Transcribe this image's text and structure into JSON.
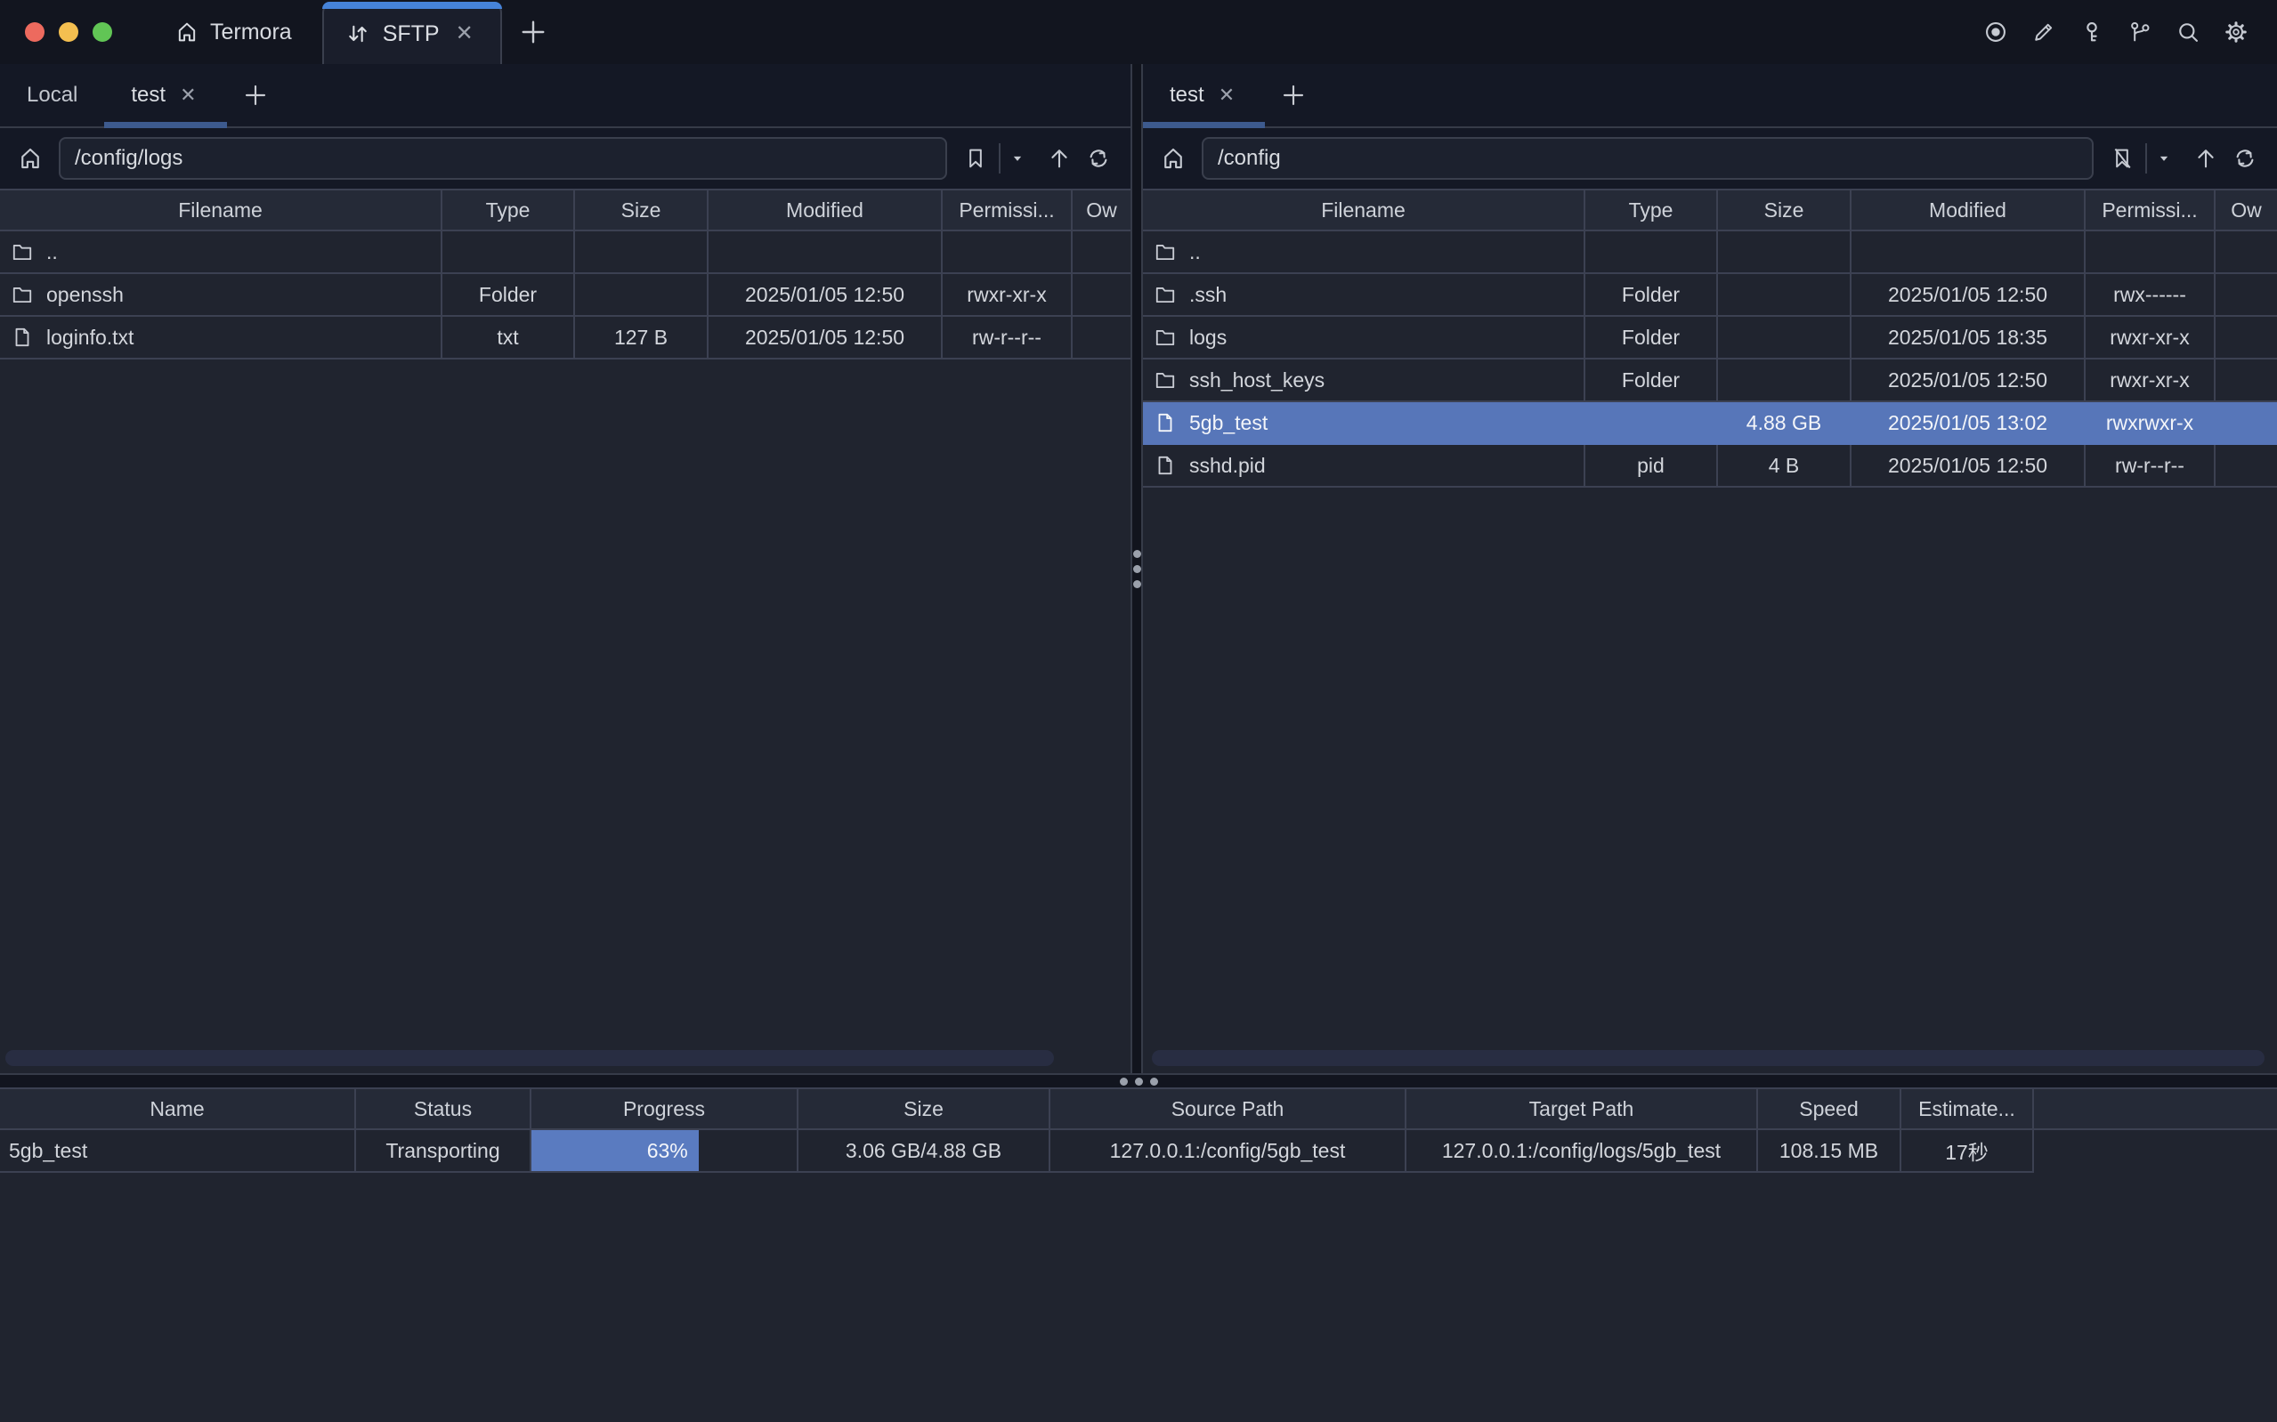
{
  "titlebar": {
    "app_label": "Termora",
    "sftp_tab": "SFTP",
    "close_glyph": "✕",
    "icons": [
      "record-icon",
      "pencil-icon",
      "key-icon",
      "branch-icon",
      "search-icon",
      "gear-icon"
    ]
  },
  "left_panel": {
    "tabs": [
      {
        "label": "Local",
        "active": false
      },
      {
        "label": "test",
        "active": true,
        "close_glyph": "✕"
      }
    ],
    "path": "/config/logs",
    "columns": [
      "Filename",
      "Type",
      "Size",
      "Modified",
      "Permissi...",
      "Ow"
    ],
    "rows": [
      {
        "name": "..",
        "icon": "folder",
        "type": "",
        "size": "",
        "modified": "",
        "perm": ""
      },
      {
        "name": "openssh",
        "icon": "folder",
        "type": "Folder",
        "size": "",
        "modified": "2025/01/05 12:50",
        "perm": "rwxr-xr-x"
      },
      {
        "name": "loginfo.txt",
        "icon": "file",
        "type": "txt",
        "size": "127 B",
        "modified": "2025/01/05 12:50",
        "perm": "rw-r--r--"
      }
    ]
  },
  "right_panel": {
    "tabs": [
      {
        "label": "test",
        "active": true,
        "close_glyph": "✕"
      }
    ],
    "path": "/config",
    "columns": [
      "Filename",
      "Type",
      "Size",
      "Modified",
      "Permissi...",
      "Ow"
    ],
    "rows": [
      {
        "name": "..",
        "icon": "folder",
        "type": "",
        "size": "",
        "modified": "",
        "perm": ""
      },
      {
        "name": ".ssh",
        "icon": "folder",
        "type": "Folder",
        "size": "",
        "modified": "2025/01/05 12:50",
        "perm": "rwx------"
      },
      {
        "name": "logs",
        "icon": "folder",
        "type": "Folder",
        "size": "",
        "modified": "2025/01/05 18:35",
        "perm": "rwxr-xr-x"
      },
      {
        "name": "ssh_host_keys",
        "icon": "folder",
        "type": "Folder",
        "size": "",
        "modified": "2025/01/05 12:50",
        "perm": "rwxr-xr-x"
      },
      {
        "name": "5gb_test",
        "icon": "file",
        "type": "",
        "size": "4.88 GB",
        "modified": "2025/01/05 13:02",
        "perm": "rwxrwxr-x",
        "selected": true
      },
      {
        "name": "sshd.pid",
        "icon": "file",
        "type": "pid",
        "size": "4 B",
        "modified": "2025/01/05 12:50",
        "perm": "rw-r--r--"
      }
    ]
  },
  "transfers": {
    "columns": [
      "Name",
      "Status",
      "Progress",
      "Size",
      "Source Path",
      "Target Path",
      "Speed",
      "Estimate..."
    ],
    "rows": [
      {
        "name": "5gb_test",
        "status": "Transporting",
        "progress_label": "63%",
        "progress_pct": 63,
        "size": "3.06 GB/4.88 GB",
        "source": "127.0.0.1:/config/5gb_test",
        "target": "127.0.0.1:/config/logs/5gb_test",
        "speed": "108.15 MB",
        "estimate": "17秒"
      }
    ]
  },
  "colors": {
    "accent": "#4683d9",
    "underline": "#3d5a8e",
    "selection": "#5776b9",
    "progress": "#5a7bc0"
  }
}
